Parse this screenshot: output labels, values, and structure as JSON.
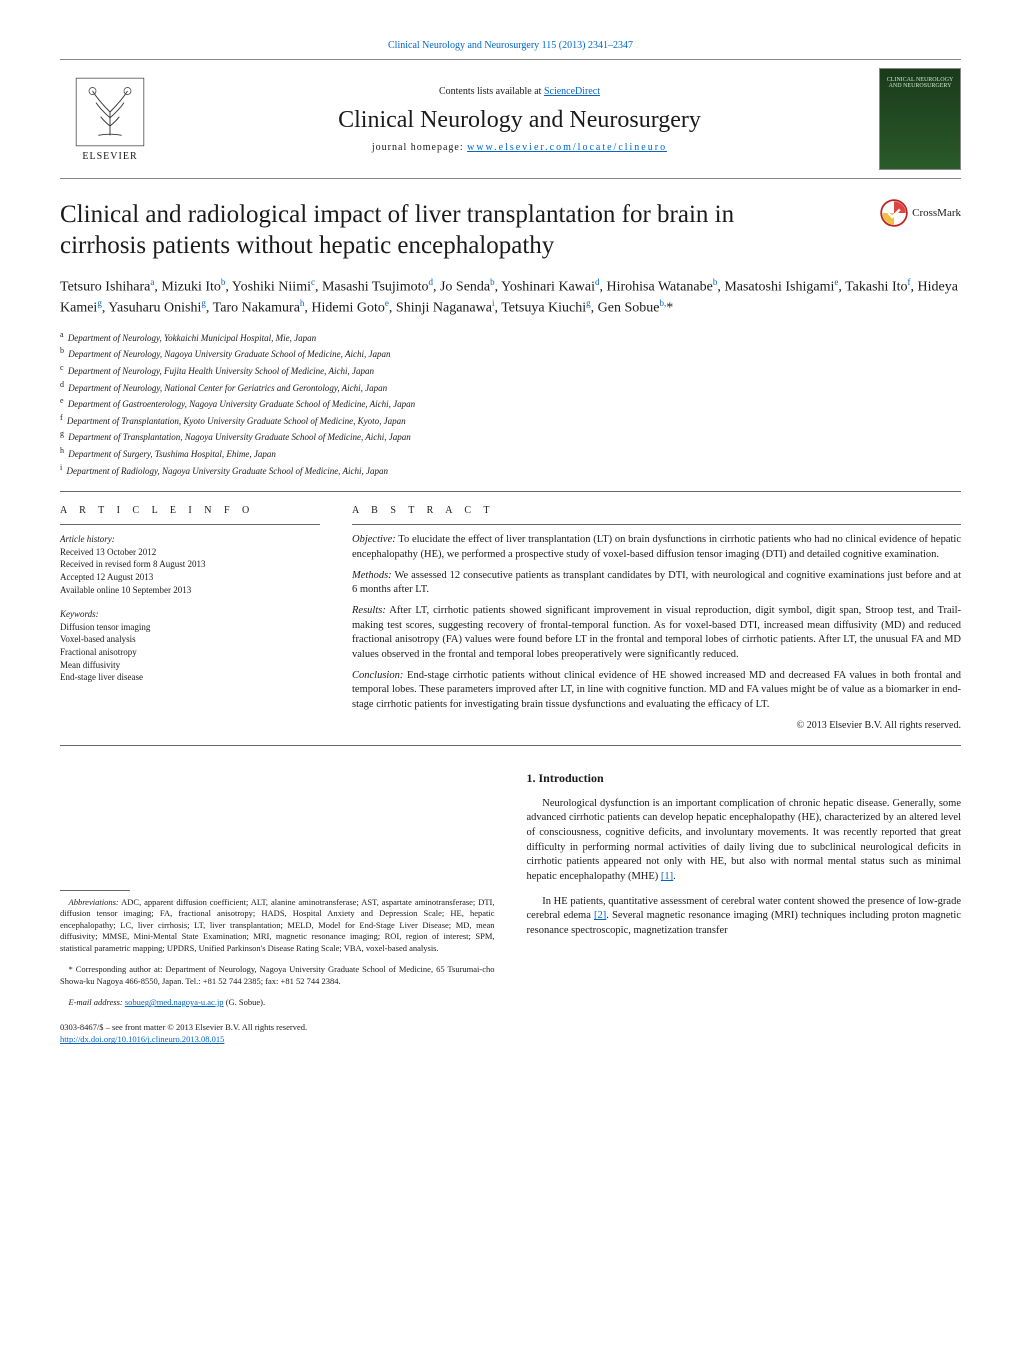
{
  "header": {
    "citation_link": "Clinical Neurology and Neurosurgery 115 (2013) 2341–2347",
    "contents_prefix": "Contents lists available at ",
    "contents_link": "ScienceDirect",
    "journal_title": "Clinical Neurology and Neurosurgery",
    "homepage_prefix": "journal homepage: ",
    "homepage_link": "www.elsevier.com/locate/clineuro",
    "publisher_name": "ELSEVIER",
    "cover_label": "CLINICAL NEUROLOGY AND NEUROSURGERY",
    "crossmark_label": "CrossMark"
  },
  "article": {
    "title": "Clinical and radiological impact of liver transplantation for brain in cirrhosis patients without hepatic encephalopathy",
    "authors_html": "Tetsuro Ishihara<sup>a</sup>, Mizuki Ito<sup>b</sup>, Yoshiki Niimi<sup>c</sup>, Masashi Tsujimoto<sup>d</sup>, Jo Senda<sup>b</sup>, Yoshinari Kawai<sup>d</sup>, Hirohisa Watanabe<sup>b</sup>, Masatoshi Ishigami<sup>e</sup>, Takashi Ito<sup>f</sup>, Hideya Kamei<sup>g</sup>, Yasuharu Onishi<sup>g</sup>, Taro Nakamura<sup>h</sup>, Hidemi Goto<sup>e</sup>, Shinji Naganawa<sup>i</sup>, Tetsuya Kiuchi<sup>g</sup>, Gen Sobue<sup>b,</sup><span class='ast'>*</span>",
    "affiliations": [
      {
        "k": "a",
        "t": "Department of Neurology, Yokkaichi Municipal Hospital, Mie, Japan"
      },
      {
        "k": "b",
        "t": "Department of Neurology, Nagoya University Graduate School of Medicine, Aichi, Japan"
      },
      {
        "k": "c",
        "t": "Department of Neurology, Fujita Health University School of Medicine, Aichi, Japan"
      },
      {
        "k": "d",
        "t": "Department of Neurology, National Center for Geriatrics and Gerontology, Aichi, Japan"
      },
      {
        "k": "e",
        "t": "Department of Gastroenterology, Nagoya University Graduate School of Medicine, Aichi, Japan"
      },
      {
        "k": "f",
        "t": "Department of Transplantation, Kyoto University Graduate School of Medicine, Kyoto, Japan"
      },
      {
        "k": "g",
        "t": "Department of Transplantation, Nagoya University Graduate School of Medicine, Aichi, Japan"
      },
      {
        "k": "h",
        "t": "Department of Surgery, Tsushima Hospital, Ehime, Japan"
      },
      {
        "k": "i",
        "t": "Department of Radiology, Nagoya University Graduate School of Medicine, Aichi, Japan"
      }
    ]
  },
  "meta": {
    "info_heading": "A R T I C L E   I N F O",
    "history_label": "Article history:",
    "history": [
      "Received 13 October 2012",
      "Received in revised form 8 August 2013",
      "Accepted 12 August 2013",
      "Available online 10 September 2013"
    ],
    "keywords_label": "Keywords:",
    "keywords": [
      "Diffusion tensor imaging",
      "Voxel-based analysis",
      "Fractional anisotropy",
      "Mean diffusivity",
      "End-stage liver disease"
    ]
  },
  "abstract": {
    "heading": "A B S T R A C T",
    "objective_label": "Objective:",
    "objective": "To elucidate the effect of liver transplantation (LT) on brain dysfunctions in cirrhotic patients who had no clinical evidence of hepatic encephalopathy (HE), we performed a prospective study of voxel-based diffusion tensor imaging (DTI) and detailed cognitive examination.",
    "methods_label": "Methods:",
    "methods": "We assessed 12 consecutive patients as transplant candidates by DTI, with neurological and cognitive examinations just before and at 6 months after LT.",
    "results_label": "Results:",
    "results": "After LT, cirrhotic patients showed significant improvement in visual reproduction, digit symbol, digit span, Stroop test, and Trail-making test scores, suggesting recovery of frontal-temporal function. As for voxel-based DTI, increased mean diffusivity (MD) and reduced fractional anisotropy (FA) values were found before LT in the frontal and temporal lobes of cirrhotic patients. After LT, the unusual FA and MD values observed in the frontal and temporal lobes preoperatively were significantly reduced.",
    "conclusion_label": "Conclusion:",
    "conclusion": "End-stage cirrhotic patients without clinical evidence of HE showed increased MD and decreased FA values in both frontal and temporal lobes. These parameters improved after LT, in line with cognitive function. MD and FA values might be of value as a biomarker in end-stage cirrhotic patients for investigating brain tissue dysfunctions and evaluating the efficacy of LT.",
    "copyright": "© 2013 Elsevier B.V. All rights reserved."
  },
  "body": {
    "intro_heading": "1. Introduction",
    "p1": "Neurological dysfunction is an important complication of chronic hepatic disease. Generally, some advanced cirrhotic patients can develop hepatic encephalopathy (HE), characterized by an altered level of consciousness, cognitive deficits, and involuntary movements. It was recently reported that great difficulty in performing normal activities of daily living due to subclinical neurological deficits in cirrhotic patients appeared not only with HE, but also with normal mental status such as minimal hepatic encephalopathy (MHE) ",
    "ref1": "[1]",
    "p1_tail": ".",
    "p2_a": "In HE patients, quantitative assessment of cerebral water content showed the presence of low-grade cerebral edema ",
    "ref2": "[2]",
    "p2_b": ". Several magnetic resonance imaging (MRI) techniques including proton magnetic resonance spectroscopic, magnetization transfer"
  },
  "footnotes": {
    "abbrev_label": "Abbreviations:",
    "abbrev": "ADC, apparent diffusion coefficient; ALT, alanine aminotransferase; AST, aspartate aminotransferase; DTI, diffusion tensor imaging; FA, fractional anisotropy; HADS, Hospital Anxiety and Depression Scale; HE, hepatic encephalopathy; LC, liver cirrhosis; LT, liver transplantation; MELD, Model for End-Stage Liver Disease; MD, mean diffusivity; MMSE, Mini-Mental State Examination; MRI, magnetic resonance imaging; ROI, region of interest; SPM, statistical parametric mapping; UPDRS, Unified Parkinson's Disease Rating Scale; VBA, voxel-based analysis.",
    "corr_label": "* Corresponding author at:",
    "corr": "Department of Neurology, Nagoya University Graduate School of Medicine, 65 Tsurumai-cho Showa-ku Nagoya 466-8550, Japan. Tel.: +81 52 744 2385; fax: +81 52 744 2384.",
    "email_label": "E-mail address:",
    "email": "sobueg@med.nagoya-u.ac.jp",
    "email_tail": "(G. Sobue).",
    "issn_line": "0303-8467/$ – see front matter © 2013 Elsevier B.V. All rights reserved.",
    "doi": "http://dx.doi.org/10.1016/j.clineuro.2013.08.015"
  },
  "colors": {
    "link": "#0066cc",
    "rule": "#666666",
    "text": "#1a1a1a"
  },
  "typography": {
    "title_pt": 25,
    "body_pt": 10.5,
    "small_pt": 9,
    "footnote_pt": 8.5
  }
}
